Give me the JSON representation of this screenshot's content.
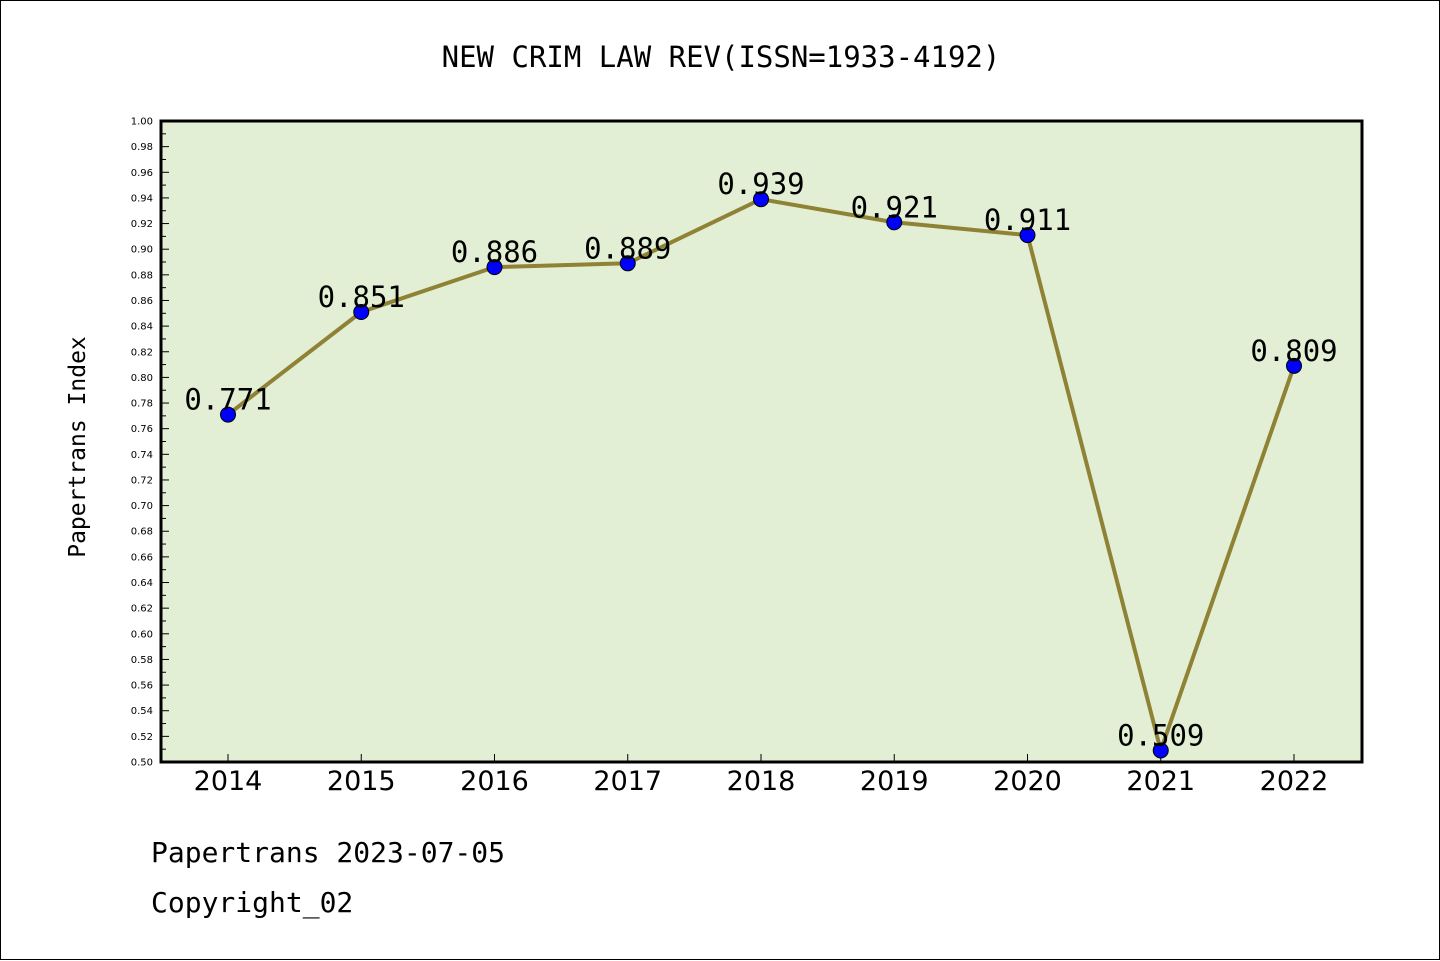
{
  "chart_data": {
    "type": "line",
    "title": "NEW CRIM LAW REV(ISSN=1933-4192)",
    "xlabel": "",
    "ylabel": "Papertrans Index",
    "categories": [
      "2014",
      "2015",
      "2016",
      "2017",
      "2018",
      "2019",
      "2020",
      "2021",
      "2022"
    ],
    "series": [
      {
        "values": [
          0.771,
          0.851,
          0.886,
          0.889,
          0.939,
          0.921,
          0.911,
          0.509,
          0.809
        ],
        "labels": [
          "0.771",
          "0.851",
          "0.886",
          "0.889",
          "0.939",
          "0.921",
          "0.911",
          "0.509",
          "0.809"
        ]
      }
    ],
    "ylim": [
      0.5,
      1.0
    ],
    "yticks": [
      "0.50",
      "0.52",
      "0.54",
      "0.56",
      "0.58",
      "0.60",
      "0.62",
      "0.64",
      "0.66",
      "0.68",
      "0.70",
      "0.72",
      "0.74",
      "0.76",
      "0.78",
      "0.80",
      "0.82",
      "0.84",
      "0.86",
      "0.88",
      "0.90",
      "0.92",
      "0.94",
      "0.96",
      "0.98",
      "1.00"
    ],
    "grid": false,
    "colors": {
      "plot_background": "#e2efd5",
      "line": "#8f8235",
      "marker": "#0000ff"
    }
  },
  "footer": {
    "date_line": "Papertrans 2023-07-05",
    "copyright": "Copyright_02"
  }
}
